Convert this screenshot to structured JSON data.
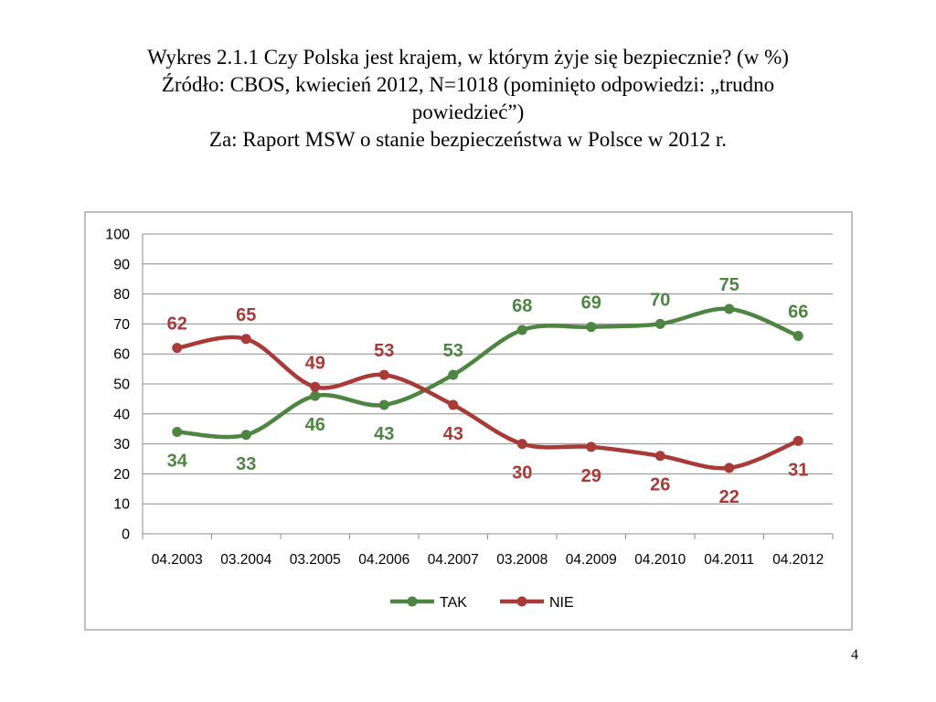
{
  "title": {
    "line1": "Wykres 2.1.1 Czy Polska jest krajem, w którym żyje się bezpiecznie? (w %)",
    "line2": "Źródło: CBOS, kwiecień 2012, N=1018 (pominięto odpowiedzi: „trudno",
    "line3": "powiedzieć”)",
    "line4": "Za: Raport MSW o stanie bezpieczeństwa w Polsce w 2012 r."
  },
  "page_number": "4",
  "chart_data": {
    "type": "line",
    "categories": [
      "04.2003",
      "03.2004",
      "03.2005",
      "04.2006",
      "04.2007",
      "03.2008",
      "04.2009",
      "04.2010",
      "04.2011",
      "04.2012"
    ],
    "series": [
      {
        "name": "TAK",
        "color": "#4e8542",
        "values": [
          34,
          33,
          46,
          43,
          53,
          68,
          69,
          70,
          75,
          66
        ]
      },
      {
        "name": "NIE",
        "color": "#a83a38",
        "values": [
          62,
          65,
          49,
          53,
          43,
          30,
          29,
          26,
          22,
          31
        ]
      }
    ],
    "yticks": [
      "0",
      "10",
      "20",
      "30",
      "40",
      "50",
      "60",
      "70",
      "80",
      "90",
      "100"
    ],
    "ylim": [
      0,
      100
    ],
    "grid": true,
    "legend_position": "bottom",
    "smooth": true
  }
}
